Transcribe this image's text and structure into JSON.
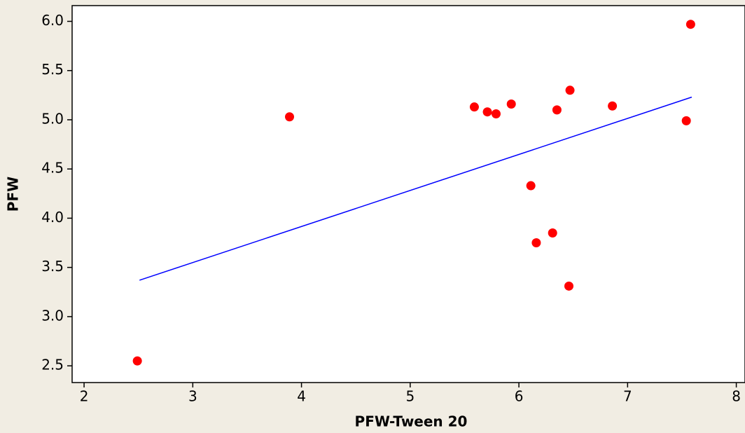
{
  "chart_data": {
    "type": "scatter",
    "x_label": "PFW-Tween 20",
    "y_label": "PFW",
    "series": [
      {
        "color": "#ff0000",
        "x": [
          2.49,
          3.89,
          5.59,
          5.71,
          5.79,
          5.93,
          6.11,
          6.16,
          6.31,
          6.35,
          6.46,
          6.47,
          6.86,
          7.54,
          7.58
        ],
        "values": [
          2.55,
          5.03,
          5.13,
          5.08,
          5.06,
          5.16,
          4.33,
          3.75,
          3.85,
          5.1,
          3.31,
          5.3,
          5.14,
          4.99,
          5.97
        ]
      }
    ],
    "fit_line": {
      "color": "#0000ff",
      "x": [
        2.51,
        7.59
      ],
      "values": [
        3.37,
        5.23
      ]
    },
    "xlim": [
      1.89,
      8.08
    ],
    "ylim": [
      2.33,
      6.16
    ],
    "xticks": [
      2,
      3,
      4,
      5,
      6,
      7,
      8
    ],
    "yticks": [
      {
        "value": 2.5,
        "label": "2.5"
      },
      {
        "value": 3,
        "label": "3.0"
      },
      {
        "value": 3.5,
        "label": "3.5"
      },
      {
        "value": 4,
        "label": "4.0"
      },
      {
        "value": 4.5,
        "label": "4.5"
      },
      {
        "value": 5,
        "label": "5.0"
      },
      {
        "value": 5.5,
        "label": "5.5"
      },
      {
        "value": 6,
        "label": "6.0"
      }
    ]
  }
}
